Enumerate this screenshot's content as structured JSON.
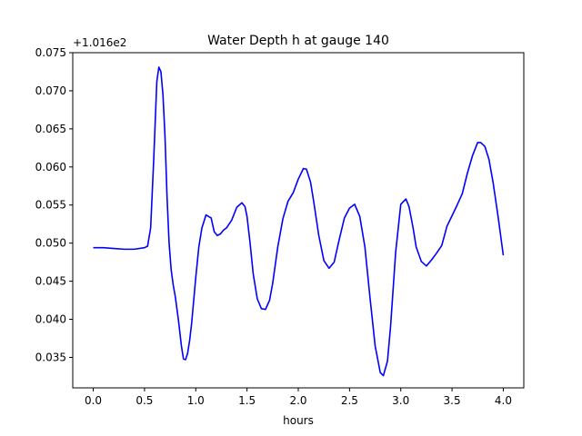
{
  "chart_data": {
    "type": "line",
    "title": "Water Depth h at gauge 140",
    "xlabel": "hours",
    "ylabel": "",
    "y_offset_label": "+1.016e2",
    "y_offset_value": 101.6,
    "xlim": [
      -0.2,
      4.2
    ],
    "ylim": [
      0.031,
      0.075
    ],
    "grid": false,
    "legend": "none",
    "colors": {
      "line": "#0000ff",
      "axes": "#000000",
      "background": "#ffffff"
    },
    "x_ticks": [
      "0.0",
      "0.5",
      "1.0",
      "1.5",
      "2.0",
      "2.5",
      "3.0",
      "3.5",
      "4.0"
    ],
    "y_ticks": [
      "0.035",
      "0.040",
      "0.045",
      "0.050",
      "0.055",
      "0.060",
      "0.065",
      "0.070",
      "0.075"
    ],
    "series": [
      {
        "x": [
          0.0,
          0.1,
          0.2,
          0.3,
          0.4,
          0.5,
          0.53,
          0.56,
          0.59,
          0.62,
          0.64,
          0.66,
          0.68,
          0.7,
          0.72,
          0.74,
          0.76,
          0.78,
          0.8,
          0.83,
          0.86,
          0.88,
          0.9,
          0.92,
          0.94,
          0.96,
          0.98,
          1.0,
          1.03,
          1.06,
          1.1,
          1.15,
          1.18,
          1.21,
          1.24,
          1.27,
          1.3,
          1.35,
          1.4,
          1.45,
          1.48,
          1.5,
          1.53,
          1.56,
          1.6,
          1.64,
          1.68,
          1.72,
          1.75,
          1.8,
          1.85,
          1.9,
          1.95,
          2.0,
          2.05,
          2.08,
          2.12,
          2.15,
          2.2,
          2.25,
          2.3,
          2.35,
          2.4,
          2.45,
          2.5,
          2.55,
          2.6,
          2.65,
          2.7,
          2.75,
          2.8,
          2.83,
          2.87,
          2.9,
          2.95,
          3.0,
          3.05,
          3.08,
          3.12,
          3.15,
          3.2,
          3.25,
          3.3,
          3.35,
          3.4,
          3.45,
          3.5,
          3.55,
          3.6,
          3.65,
          3.7,
          3.75,
          3.78,
          3.82,
          3.86,
          3.9,
          3.95,
          4.0
        ],
        "y": [
          0.0494,
          0.0494,
          0.0493,
          0.0492,
          0.0492,
          0.0494,
          0.0496,
          0.052,
          0.061,
          0.0712,
          0.0731,
          0.0725,
          0.0695,
          0.064,
          0.056,
          0.05,
          0.0465,
          0.0445,
          0.043,
          0.04,
          0.0365,
          0.0348,
          0.0347,
          0.0355,
          0.0372,
          0.0395,
          0.0425,
          0.0455,
          0.0495,
          0.052,
          0.0537,
          0.0533,
          0.0515,
          0.051,
          0.0512,
          0.0517,
          0.052,
          0.053,
          0.0547,
          0.0553,
          0.0548,
          0.0535,
          0.05,
          0.046,
          0.0427,
          0.0414,
          0.0413,
          0.0425,
          0.0447,
          0.0495,
          0.0532,
          0.0555,
          0.0566,
          0.0584,
          0.0598,
          0.0597,
          0.058,
          0.0555,
          0.051,
          0.0477,
          0.0467,
          0.0475,
          0.0505,
          0.0533,
          0.0546,
          0.0551,
          0.0535,
          0.0495,
          0.0428,
          0.0365,
          0.033,
          0.0326,
          0.0345,
          0.039,
          0.0488,
          0.0551,
          0.0558,
          0.0548,
          0.052,
          0.0495,
          0.0476,
          0.047,
          0.0478,
          0.0487,
          0.0497,
          0.0522,
          0.0536,
          0.055,
          0.0565,
          0.0592,
          0.0615,
          0.0632,
          0.0632,
          0.0627,
          0.061,
          0.058,
          0.0534,
          0.0484
        ]
      }
    ]
  }
}
